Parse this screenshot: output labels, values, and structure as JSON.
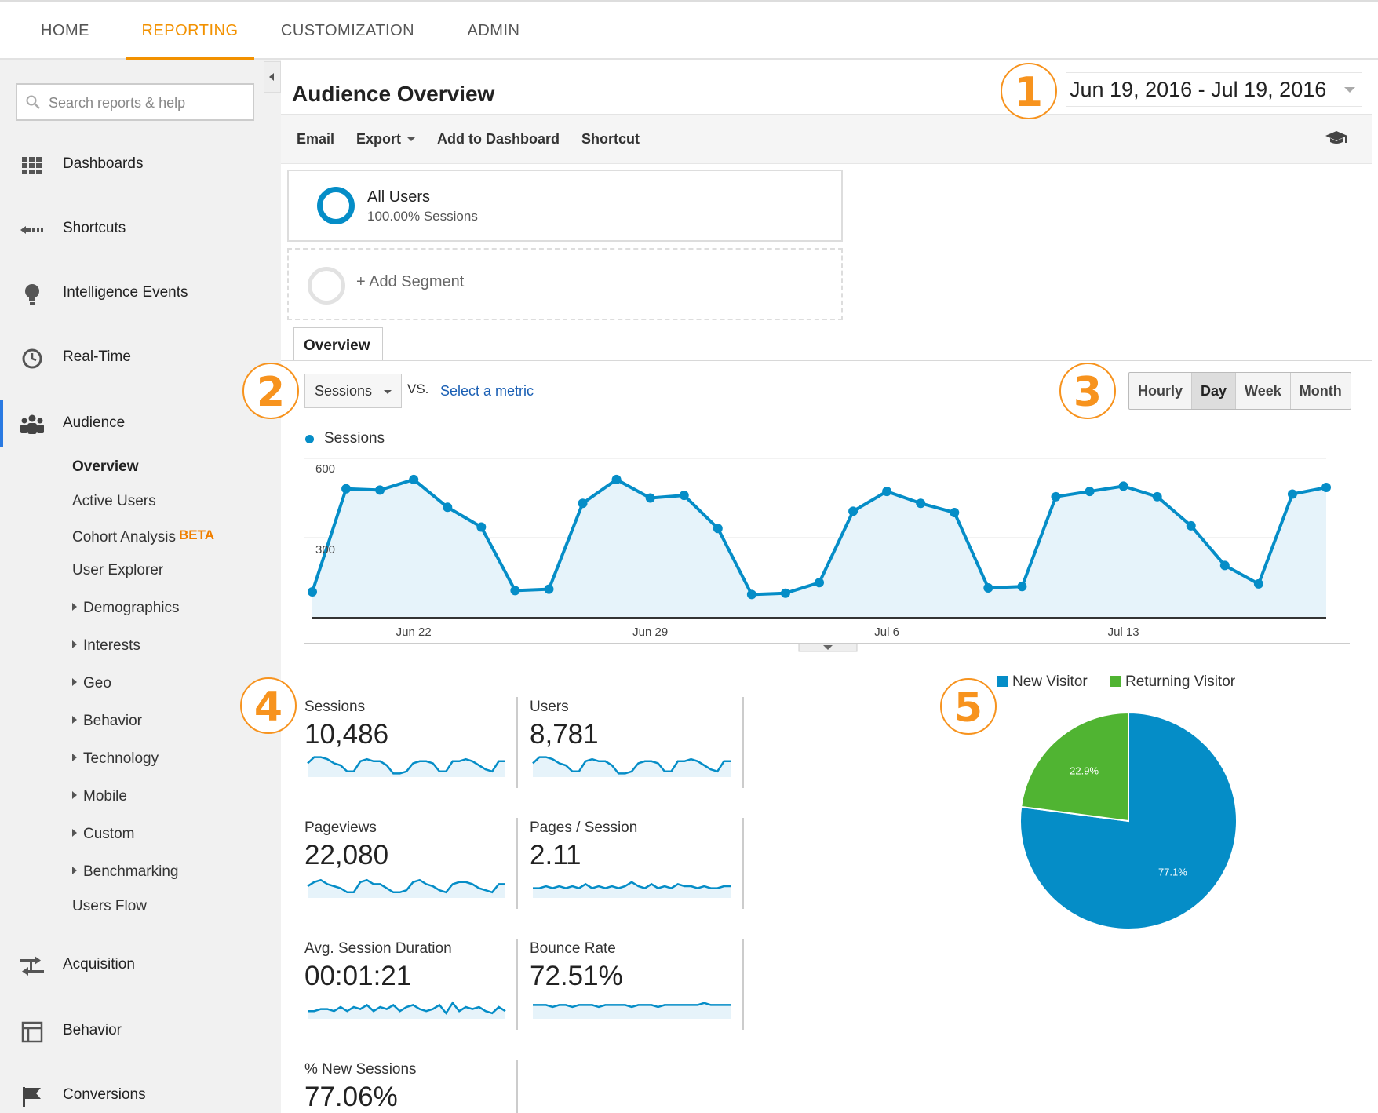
{
  "topnav": {
    "tabs": [
      {
        "label": "HOME",
        "active": false
      },
      {
        "label": "REPORTING",
        "active": true
      },
      {
        "label": "CUSTOMIZATION",
        "active": false
      },
      {
        "label": "ADMIN",
        "active": false
      }
    ]
  },
  "sidebar": {
    "search_placeholder": "Search reports & help",
    "items": [
      {
        "label": "Dashboards",
        "icon": "grid-icon"
      },
      {
        "label": "Shortcuts",
        "icon": "shortcut-arrow-icon"
      },
      {
        "label": "Intelligence Events",
        "icon": "lightbulb-icon"
      },
      {
        "label": "Real-Time",
        "icon": "clock-icon"
      },
      {
        "label": "Audience",
        "icon": "people-icon",
        "selected": true
      },
      {
        "label": "Acquisition",
        "icon": "acquisition-arrows-icon"
      },
      {
        "label": "Behavior",
        "icon": "layout-icon"
      },
      {
        "label": "Conversions",
        "icon": "flag-icon"
      }
    ],
    "audience_sub": {
      "overview": "Overview",
      "active_users": "Active Users",
      "cohort": "Cohort Analysis",
      "beta": "BETA",
      "user_explorer": "User Explorer",
      "demographics": "Demographics",
      "interests": "Interests",
      "geo": "Geo",
      "behavior": "Behavior",
      "technology": "Technology",
      "mobile": "Mobile",
      "custom": "Custom",
      "benchmarking": "Benchmarking",
      "users_flow": "Users Flow"
    }
  },
  "header": {
    "title": "Audience Overview",
    "date_range": "Jun 19, 2016 - Jul 19, 2016"
  },
  "toolbar": {
    "email": "Email",
    "export": "Export",
    "add_dashboard": "Add to Dashboard",
    "shortcut": "Shortcut",
    "help_icon": "graduation-cap-icon"
  },
  "segments": {
    "all_users": "All Users",
    "all_users_sub": "100.00% Sessions",
    "add": "+ Add Segment"
  },
  "overview_tab": "Overview",
  "metric": {
    "selected": "Sessions",
    "vs": "VS.",
    "select": "Select a metric"
  },
  "granularity": [
    {
      "label": "Hourly",
      "active": false
    },
    {
      "label": "Day",
      "active": true
    },
    {
      "label": "Week",
      "active": false
    },
    {
      "label": "Month",
      "active": false
    }
  ],
  "callouts": [
    "1",
    "2",
    "3",
    "4",
    "5"
  ],
  "colors": {
    "accent": "#058dc7",
    "orange": "#f29100",
    "green": "#50b432"
  },
  "chart_data": [
    {
      "type": "line",
      "series": [
        {
          "name": "Sessions",
          "values": [
            95,
            485,
            480,
            520,
            415,
            340,
            100,
            105,
            430,
            520,
            450,
            460,
            335,
            85,
            90,
            130,
            400,
            475,
            430,
            395,
            110,
            115,
            455,
            475,
            495,
            455,
            345,
            195,
            125,
            465,
            490
          ]
        }
      ],
      "x_tick_labels": [
        "Jun 22",
        "Jun 29",
        "Jul 6",
        "Jul 13"
      ],
      "y_tick_labels": [
        "600",
        "300"
      ],
      "ylim": [
        0,
        600
      ],
      "grid": true
    },
    {
      "type": "pie",
      "categories": [
        "New Visitor",
        "Returning Visitor"
      ],
      "values": [
        77.1,
        22.9
      ],
      "data_labels": [
        "77.1%",
        "22.9%"
      ],
      "colors": [
        "#058dc7",
        "#50b432"
      ],
      "legend": "top"
    }
  ],
  "scorecards": [
    {
      "label": "Sessions",
      "value": "10,486",
      "spark": [
        6,
        9,
        9,
        8,
        6,
        5,
        2,
        2,
        7,
        8,
        7,
        7,
        5,
        1,
        1,
        2,
        6,
        7,
        7,
        6,
        2,
        2,
        7,
        7,
        8,
        7,
        5,
        3,
        2,
        7,
        7
      ]
    },
    {
      "label": "Users",
      "value": "8,781",
      "spark": [
        6,
        9,
        9,
        8,
        6,
        5,
        2,
        2,
        7,
        8,
        7,
        7,
        5,
        1,
        1,
        2,
        6,
        7,
        7,
        6,
        2,
        2,
        7,
        7,
        8,
        7,
        5,
        3,
        2,
        7,
        7
      ]
    },
    {
      "label": "Pageviews",
      "value": "22,080",
      "spark": [
        5,
        7,
        8,
        6,
        5,
        4,
        2,
        2,
        7,
        8,
        6,
        6,
        4,
        2,
        2,
        3,
        7,
        8,
        6,
        5,
        3,
        2,
        6,
        7,
        7,
        6,
        4,
        3,
        2,
        6,
        6
      ]
    },
    {
      "label": "Pages / Session",
      "value": "2.11",
      "spark": [
        4,
        4,
        5,
        4,
        5,
        4,
        5,
        4,
        6,
        4,
        5,
        4,
        5,
        4,
        5,
        7,
        5,
        4,
        6,
        4,
        5,
        4,
        6,
        5,
        5,
        4,
        5,
        4,
        4,
        5,
        5
      ]
    },
    {
      "label": "Avg. Session Duration",
      "value": "00:01:21",
      "spark": [
        3,
        3,
        4,
        4,
        3,
        5,
        3,
        5,
        4,
        6,
        3,
        5,
        4,
        6,
        3,
        5,
        6,
        4,
        3,
        4,
        6,
        2,
        7,
        3,
        5,
        4,
        5,
        3,
        2,
        5,
        3
      ]
    },
    {
      "label": "Bounce Rate",
      "value": "72.51%",
      "spark": [
        6,
        6,
        6,
        5,
        6,
        6,
        5,
        6,
        6,
        6,
        5,
        6,
        6,
        6,
        6,
        5,
        6,
        6,
        6,
        5,
        6,
        6,
        6,
        6,
        6,
        6,
        7,
        6,
        6,
        6,
        6
      ]
    },
    {
      "label": "% New Sessions",
      "value": "77.06%",
      "spark": []
    }
  ]
}
